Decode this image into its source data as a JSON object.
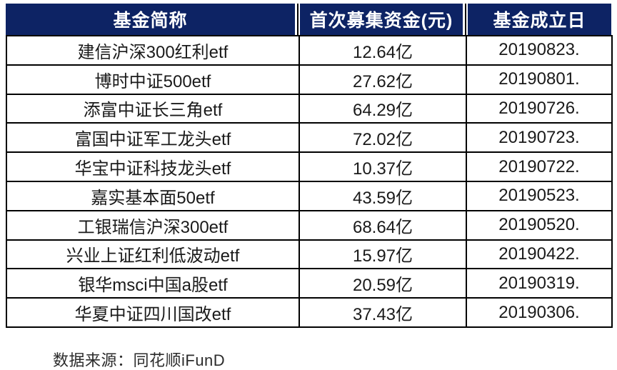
{
  "colors": {
    "header_bg": "#0d2364",
    "header_text": "#ffffff",
    "grid_border": "#000000",
    "body_text": "#1a1a1a",
    "page_bg": "#ffffff"
  },
  "chart_data": {
    "type": "table",
    "columns": [
      "基金简称",
      "首次募集资金(元)",
      "基金成立日"
    ],
    "rows": [
      [
        "建信沪深300红利etf",
        "12.64亿",
        "20190823."
      ],
      [
        "博时中证500etf",
        "27.62亿",
        "20190801."
      ],
      [
        "添富中证长三角etf",
        "64.29亿",
        "20190726."
      ],
      [
        "富国中证军工龙头etf",
        "72.02亿",
        "20190723."
      ],
      [
        "华宝中证科技龙头etf",
        "10.37亿",
        "20190722."
      ],
      [
        "嘉实基本面50etf",
        "43.59亿",
        "20190523."
      ],
      [
        "工银瑞信沪深300etf",
        "68.64亿",
        "20190520."
      ],
      [
        "兴业上证红利低波动etf",
        "15.97亿",
        "20190422."
      ],
      [
        "银华msci中国a股etf",
        "20.59亿",
        "20190319."
      ],
      [
        "华夏中证四川国改etf",
        "37.43亿",
        "20190306."
      ]
    ],
    "source": "数据来源：同花顺iFunD"
  }
}
